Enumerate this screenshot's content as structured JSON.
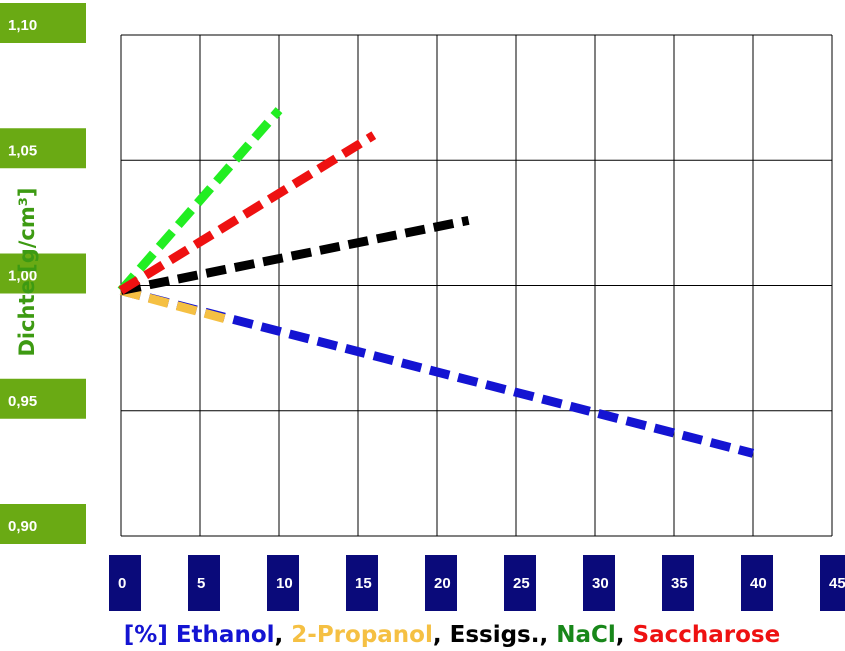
{
  "chart_data": {
    "type": "line",
    "ylabel": "Dichte [g/cm³]",
    "xlabel_parts": [
      {
        "text": "[%] Ethanol",
        "color": "#1414d2"
      },
      {
        "text": ", ",
        "color": "#000000"
      },
      {
        "text": "2-Propanol",
        "color": "#f5c043"
      },
      {
        "text": ", ",
        "color": "#000000"
      },
      {
        "text": "Essigs.",
        "color": "#000000"
      },
      {
        "text": ", ",
        "color": "#000000"
      },
      {
        "text": "NaCl",
        "color": "#18871a"
      },
      {
        "text": ", ",
        "color": "#000000"
      },
      {
        "text": "Saccharose",
        "color": "#ee1111"
      }
    ],
    "xlim": [
      0,
      45
    ],
    "ylim": [
      0.9,
      1.1
    ],
    "x_ticks": [
      "0",
      "5",
      "10",
      "15",
      "20",
      "25",
      "30",
      "35",
      "40",
      "45"
    ],
    "y_ticks": [
      {
        "label": "1,10",
        "value": 1.1
      },
      {
        "label": "1,05",
        "value": 1.05
      },
      {
        "label": "1,00",
        "value": 1.0
      },
      {
        "label": "0,95",
        "value": 0.95
      },
      {
        "label": "0,90",
        "value": 0.9
      }
    ],
    "grid": true,
    "series": [
      {
        "name": "Ethanol",
        "color": "#1414d2",
        "x": [
          0,
          40
        ],
        "y": [
          0.998,
          0.933
        ]
      },
      {
        "name": "2-Propanol",
        "color": "#f5c043",
        "x": [
          0,
          7
        ],
        "y": [
          0.998,
          0.986
        ]
      },
      {
        "name": "Essigs.",
        "color": "#000000",
        "x": [
          0,
          22
        ],
        "y": [
          0.998,
          1.026
        ]
      },
      {
        "name": "NaCl",
        "color": "#22ee22",
        "x": [
          0,
          10
        ],
        "y": [
          0.998,
          1.07
        ]
      },
      {
        "name": "Saccharose",
        "color": "#ee1111",
        "x": [
          0,
          16
        ],
        "y": [
          0.998,
          1.06
        ]
      }
    ]
  }
}
